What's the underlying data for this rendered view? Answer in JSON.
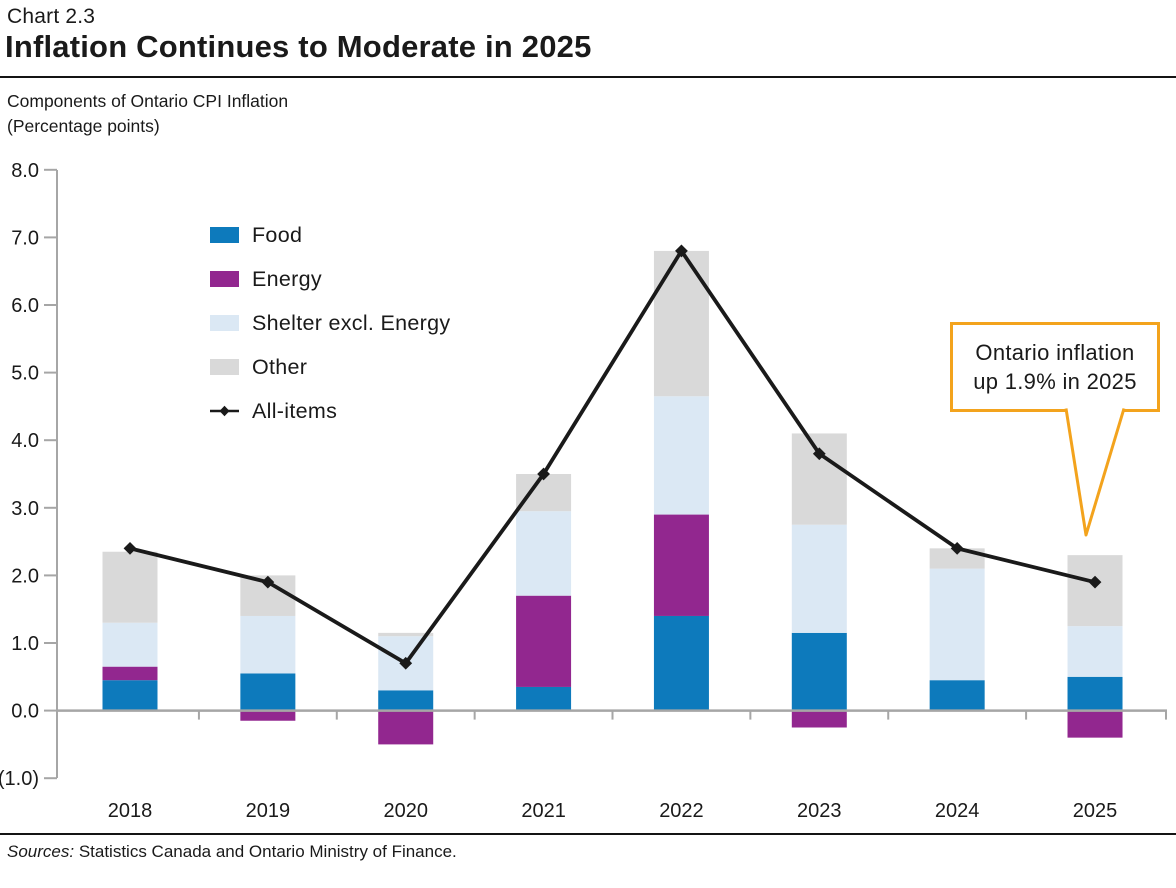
{
  "header": {
    "chart_label": "Chart 2.3",
    "title": "Inflation Continues to Moderate in 2025",
    "subtitle_line1": "Components of Ontario CPI Inflation",
    "subtitle_line2": "(Percentage points)"
  },
  "chart_data": {
    "type": "bar",
    "subtype": "stacked-bars-with-line-overlay",
    "title": "Inflation Continues to Moderate in 2025",
    "ylabel": "Percentage points",
    "xlabel": "",
    "grid": false,
    "legend_position": "upper-left-inside",
    "ylim": [
      -1.0,
      8.0
    ],
    "ytick_values": [
      8,
      7,
      6,
      5,
      4,
      3,
      2,
      1,
      0,
      -1
    ],
    "ytick_labels": [
      "8.0",
      "7.0",
      "6.0",
      "5.0",
      "4.0",
      "3.0",
      "2.0",
      "1.0",
      "0.0",
      "(1.0)"
    ],
    "categories": [
      "2018",
      "2019",
      "2020",
      "2021",
      "2022",
      "2023",
      "2024",
      "2025"
    ],
    "series": [
      {
        "name": "Food",
        "color": "#0d7abc",
        "values": [
          0.45,
          0.55,
          0.3,
          0.35,
          1.4,
          1.15,
          0.45,
          0.5
        ]
      },
      {
        "name": "Energy",
        "color": "#92278f",
        "values": [
          0.2,
          -0.15,
          -0.5,
          1.35,
          1.5,
          -0.25,
          0.0,
          -0.4
        ]
      },
      {
        "name": "Shelter excl. Energy",
        "color": "#dbe8f4",
        "values": [
          0.65,
          0.85,
          0.8,
          1.25,
          1.75,
          1.6,
          1.65,
          0.75
        ]
      },
      {
        "name": "Other",
        "color": "#d9d9d9",
        "values": [
          1.05,
          0.6,
          0.05,
          0.55,
          2.15,
          1.35,
          0.3,
          1.05
        ]
      }
    ],
    "line_series": {
      "name": "All-items",
      "color": "#1a1a1a",
      "marker": "diamond",
      "values": [
        2.4,
        1.9,
        0.7,
        3.5,
        6.8,
        3.8,
        2.4,
        1.9
      ]
    },
    "legend": [
      {
        "label": "Food",
        "color": "#0d7abc",
        "type": "box"
      },
      {
        "label": "Energy",
        "color": "#92278f",
        "type": "box"
      },
      {
        "label": "Shelter excl. Energy",
        "color": "#dbe8f4",
        "type": "box"
      },
      {
        "label": "Other",
        "color": "#d9d9d9",
        "type": "box"
      },
      {
        "label": "All-items",
        "color": "#1a1a1a",
        "type": "line-marker"
      }
    ],
    "axis_color": "#a6a6a6"
  },
  "annotation": {
    "line1": "Ontario inflation",
    "line2": "up 1.9% in 2025",
    "border_color": "#f3a31d"
  },
  "footer": {
    "sources_label": "Sources:",
    "sources_text": " Statistics Canada and Ontario Ministry of Finance."
  }
}
